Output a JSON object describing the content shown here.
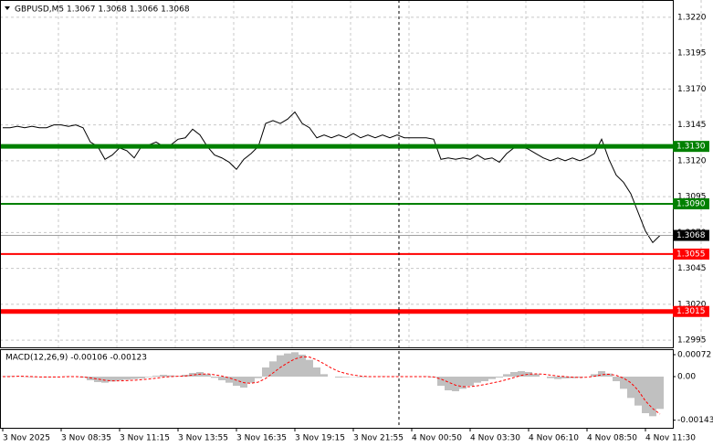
{
  "chart_data": [
    {
      "type": "line",
      "title": "GBPUSD,M5  1.3067 1.3068 1.3066 1.3068",
      "color": "#000000",
      "grid": true,
      "ylim": [
        1.299,
        1.3232
      ],
      "yticks": [
        {
          "value": 1.322,
          "label": "1.3220"
        },
        {
          "value": 1.3195,
          "label": "1.3195"
        },
        {
          "value": 1.317,
          "label": "1.3170"
        },
        {
          "value": 1.3145,
          "label": "1.3145"
        },
        {
          "value": 1.312,
          "label": "1.3120"
        },
        {
          "value": 1.3095,
          "label": "1.3095"
        },
        {
          "value": 1.307,
          "label": "1.3070"
        },
        {
          "value": 1.3045,
          "label": "1.3045"
        },
        {
          "value": 1.302,
          "label": "1.3020"
        },
        {
          "value": 1.2995,
          "label": "1.2995"
        }
      ],
      "categories": [
        "3 Nov 2025",
        null,
        null,
        null,
        null,
        null,
        null,
        null,
        "3 Nov 08:35",
        null,
        null,
        null,
        null,
        null,
        null,
        null,
        "3 Nov 11:15",
        null,
        null,
        null,
        null,
        null,
        null,
        null,
        "3 Nov 13:55",
        null,
        null,
        null,
        null,
        null,
        null,
        null,
        "3 Nov 16:35",
        null,
        null,
        null,
        null,
        null,
        null,
        null,
        "3 Nov 19:15",
        null,
        null,
        null,
        null,
        null,
        null,
        null,
        "3 Nov 21:55",
        null,
        null,
        null,
        null,
        null,
        null,
        null,
        "4 Nov 00:50",
        null,
        null,
        null,
        null,
        null,
        null,
        null,
        "4 Nov 03:30",
        null,
        null,
        null,
        null,
        null,
        null,
        null,
        "4 Nov 06:10",
        null,
        null,
        null,
        null,
        null,
        null,
        null,
        "4 Nov 08:50",
        null,
        null,
        null,
        null,
        null,
        null,
        null,
        "4 Nov 11:30",
        null,
        null
      ],
      "values": [
        1.3143,
        1.3143,
        1.3144,
        1.3143,
        1.3144,
        1.3143,
        1.3143,
        1.3145,
        1.3145,
        1.3144,
        1.3145,
        1.3143,
        1.3133,
        1.313,
        1.3121,
        1.3124,
        1.3129,
        1.3127,
        1.3122,
        1.313,
        1.3131,
        1.3133,
        1.313,
        1.3131,
        1.3135,
        1.3136,
        1.3142,
        1.3138,
        1.313,
        1.3124,
        1.3122,
        1.3119,
        1.3114,
        1.3121,
        1.3125,
        1.313,
        1.3146,
        1.3148,
        1.3146,
        1.3149,
        1.3154,
        1.3146,
        1.3143,
        1.3136,
        1.3138,
        1.3136,
        1.3138,
        1.3136,
        1.3139,
        1.3136,
        1.3138,
        1.3136,
        1.3138,
        1.3136,
        1.3138,
        1.3136,
        1.3136,
        1.3136,
        1.3136,
        1.3135,
        1.3121,
        1.3122,
        1.3121,
        1.3122,
        1.3121,
        1.3124,
        1.3121,
        1.3122,
        1.3119,
        1.3125,
        1.3129,
        1.313,
        1.3128,
        1.3125,
        1.3122,
        1.312,
        1.3122,
        1.312,
        1.3122,
        1.312,
        1.3122,
        1.3125,
        1.3135,
        1.3121,
        1.311,
        1.3105,
        1.3097,
        1.3084,
        1.3071,
        1.3063,
        1.3068
      ],
      "levels": [
        {
          "value": 1.313,
          "label": "1.3130",
          "color": "#008000",
          "line_width": 5
        },
        {
          "value": 1.309,
          "label": "1.3090",
          "color": "#008000",
          "line_width": 2
        },
        {
          "value": 1.3055,
          "label": "1.3055",
          "color": "#ff0000",
          "line_width": 2
        },
        {
          "value": 1.3015,
          "label": "1.3015",
          "color": "#ff0000",
          "line_width": 5
        }
      ],
      "current": {
        "value": 1.3068,
        "label": "1.3068",
        "color": "#000000"
      }
    },
    {
      "type": "macd",
      "title": "MACD(12,26,9) -0.00106 -0.00123",
      "ylim": [
        -0.00168,
        0.0009
      ],
      "yticks": [
        0.00072,
        {
          "value": 0,
          "label": "0.00"
        },
        -0.00143
      ],
      "series": [
        {
          "color": "#c0c0c0",
          "values": [
            1e-05,
            2e-05,
            1e-05,
            -1e-05,
            -2e-05,
            -1e-05,
            -2e-05,
            -1e-05,
            0,
            1e-05,
            0,
            -3e-05,
            -0.00012,
            -0.00018,
            -0.0002,
            -0.00016,
            -0.00012,
            -0.0001,
            -8e-05,
            -6e-05,
            -2e-05,
            3e-05,
            6e-05,
            4e-05,
            2e-05,
            6e-05,
            0.00012,
            0.00015,
            8e-05,
            -4e-05,
            -0.00012,
            -0.0002,
            -0.0003,
            -0.00036,
            -0.0002,
            -5e-05,
            0.0003,
            0.0005,
            0.0007,
            0.00076,
            0.0008,
            0.00072,
            0.00055,
            0.0003,
            8e-05,
            0,
            -3e-05,
            -2e-05,
            -1e-05,
            -2e-05,
            -1e-05,
            0,
            1e-05,
            0,
            1e-05,
            0,
            0,
            0,
            1e-05,
            -2e-05,
            -0.0003,
            -0.00045,
            -0.00048,
            -0.0004,
            -0.0003,
            -0.0002,
            -0.00015,
            -8e-05,
            -3e-05,
            8e-05,
            0.00015,
            0.00018,
            0.00015,
            8e-05,
            0,
            -5e-05,
            -8e-05,
            -6e-05,
            -5e-05,
            -3e-05,
            0,
            8e-05,
            0.00018,
            0.0001,
            -0.00015,
            -0.0004,
            -0.0007,
            -0.00095,
            -0.0012,
            -0.0013,
            -0.00106
          ]
        },
        {
          "color": "#ff0000",
          "values": [
            0,
            0,
            1e-05,
            1e-05,
            0,
            -1e-05,
            -1e-05,
            -1e-05,
            -1e-05,
            0,
            0,
            -1e-05,
            -4e-05,
            -8e-05,
            -0.00012,
            -0.00014,
            -0.00014,
            -0.00013,
            -0.00012,
            -0.0001,
            -8e-05,
            -5e-05,
            -2e-05,
            0,
            1e-05,
            2e-05,
            5e-05,
            8e-05,
            9e-05,
            6e-05,
            2e-05,
            -4e-05,
            -0.00012,
            -0.0002,
            -0.00022,
            -0.00018,
            -6e-05,
            0.00012,
            0.0003,
            0.00045,
            0.00058,
            0.00065,
            0.00064,
            0.00055,
            0.00042,
            0.00028,
            0.00017,
            0.0001,
            5e-05,
            2e-05,
            0,
            0,
            0,
            0,
            0,
            0,
            0,
            0,
            0,
            -1e-05,
            -8e-05,
            -0.00018,
            -0.00028,
            -0.00033,
            -0.00033,
            -0.0003,
            -0.00026,
            -0.00021,
            -0.00016,
            -0.0001,
            -3e-05,
            4e-05,
            8e-05,
            9e-05,
            8e-05,
            5e-05,
            2e-05,
            0,
            -2e-05,
            -3e-05,
            -2e-05,
            1e-05,
            6e-05,
            8e-05,
            4e-05,
            -5e-05,
            -0.0002,
            -0.00045,
            -0.0008,
            -0.00105,
            -0.00123
          ]
        }
      ]
    }
  ]
}
